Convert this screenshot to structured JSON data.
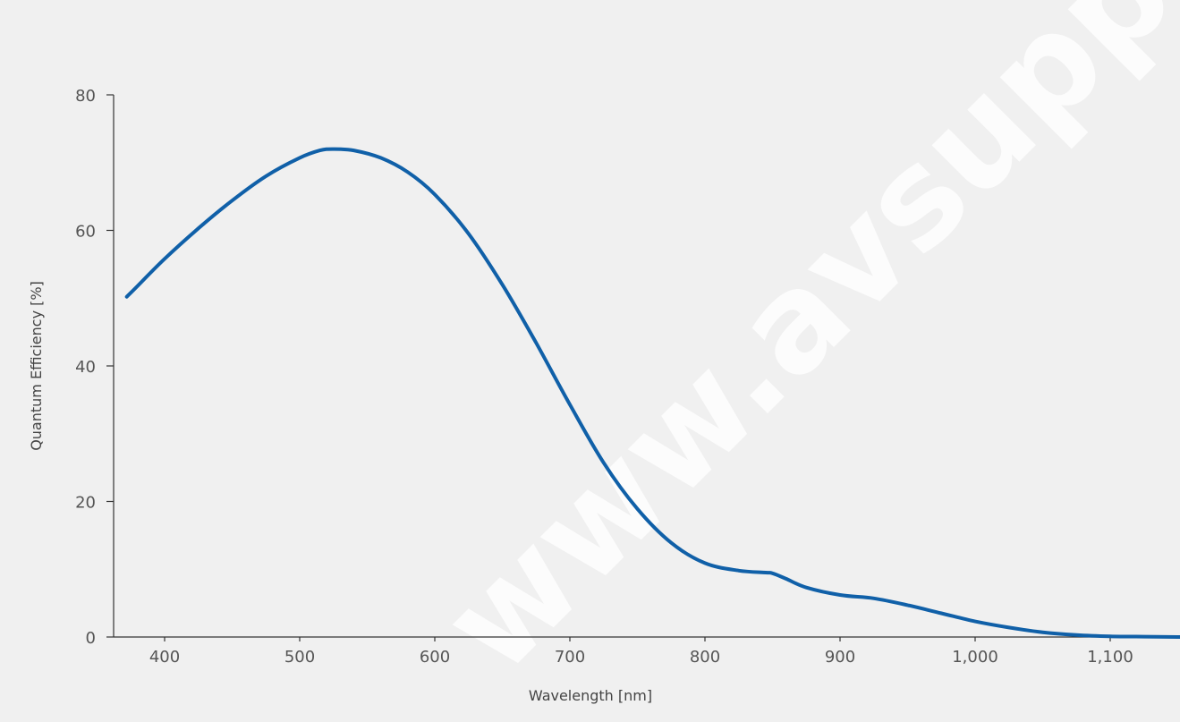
{
  "chart_data": {
    "type": "line",
    "xlabel": "Wavelength [nm]",
    "ylabel": "Quantum Efficiency [%]",
    "xlim": [
      365,
      1160
    ],
    "ylim": [
      0,
      80
    ],
    "x_ticks": [
      400,
      500,
      600,
      700,
      800,
      900,
      1000,
      1100
    ],
    "x_tick_labels": [
      "400",
      "500",
      "600",
      "700",
      "800",
      "900",
      "1,000",
      "1,100"
    ],
    "y_ticks": [
      0,
      20,
      40,
      60,
      80
    ],
    "y_tick_labels": [
      "0",
      "20",
      "40",
      "60",
      "80"
    ],
    "grid": false,
    "line_color": "#1060a8",
    "background_color": "#f0f0f0",
    "watermark_text": "www.avsupply.com",
    "series": [
      {
        "x": [
          372,
          380,
          400,
          425,
          450,
          475,
          500,
          515,
          525,
          540,
          560,
          580,
          600,
          625,
          650,
          675,
          700,
          725,
          750,
          775,
          800,
          825,
          845,
          850,
          860,
          875,
          900,
          925,
          950,
          975,
          1000,
          1025,
          1050,
          1075,
          1100,
          1125,
          1150,
          1160
        ],
        "y": [
          50.2,
          51.8,
          55.8,
          60.3,
          64.4,
          68.0,
          70.7,
          71.8,
          72.0,
          71.8,
          70.7,
          68.6,
          65.3,
          59.5,
          52.0,
          43.4,
          34.3,
          25.7,
          18.9,
          13.9,
          10.9,
          9.8,
          9.5,
          9.4,
          8.6,
          7.3,
          6.2,
          5.7,
          4.7,
          3.5,
          2.3,
          1.4,
          0.7,
          0.3,
          0.1,
          0.05,
          0.0,
          0.0
        ]
      }
    ]
  }
}
